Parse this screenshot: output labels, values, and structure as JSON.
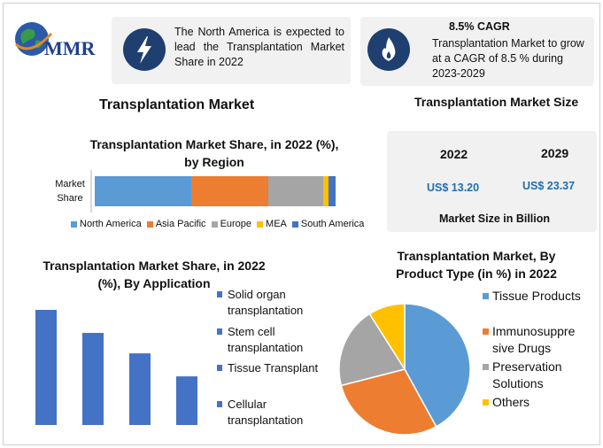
{
  "brand": {
    "logo_text": "MMR"
  },
  "cards": {
    "north_america": "The North America is expected to lead the Transplantation Market Share in 2022",
    "cagr_title": "8.5% CAGR",
    "cagr_text": "Transplantation Market to grow at a CAGR of 8.5 % during 2023-2029"
  },
  "main_title": "Transplantation Market",
  "market_size": {
    "title": "Transplantation Market Size",
    "years": [
      "2022",
      "2029"
    ],
    "values": [
      "US$ 13.20",
      "US$ 23.37"
    ],
    "caption": "Market Size in Billion"
  },
  "colors": {
    "blue": "#5b9bd5",
    "orange": "#ed7d31",
    "gray": "#a5a5a5",
    "yellow": "#ffc000",
    "darkblue": "#4472c4",
    "navy": "#1f3f70",
    "value_blue": "#1f6fb0"
  },
  "chart_data": [
    {
      "type": "bar",
      "orientation": "horizontal-stacked",
      "title": "Transplantation  Market Share, in 2022 (%), by Region",
      "categories": [
        "Market Share"
      ],
      "series": [
        {
          "name": "North America",
          "values": [
            40
          ]
        },
        {
          "name": "Asia Pacific",
          "values": [
            32
          ]
        },
        {
          "name": "Europe",
          "values": [
            23
          ]
        },
        {
          "name": "MEA",
          "values": [
            2
          ]
        },
        {
          "name": "South America",
          "values": [
            3
          ]
        }
      ],
      "legend": "bottom"
    },
    {
      "type": "bar",
      "title": "Transplantation Market Share, in 2022 (%), By Application",
      "categories": [
        "Solid organ transplantation",
        "Stem cell transplantation",
        "Tissue Transplant",
        "Cellular transplantation"
      ],
      "values": [
        45,
        36,
        28,
        19
      ],
      "legend": "right"
    },
    {
      "type": "pie",
      "title": "Transplantation Market, By Product Type (in %) in 2022",
      "labels": [
        "Tissue Products",
        "Immunosuppressive Drugs",
        "Preservation Solutions",
        "Others"
      ],
      "legend_labels": [
        "Tissue Products",
        "Immunosuppre sive Drugs",
        "Preservation Solutions",
        "Others"
      ],
      "values": [
        42,
        29,
        20,
        9
      ],
      "legend": "right"
    }
  ]
}
